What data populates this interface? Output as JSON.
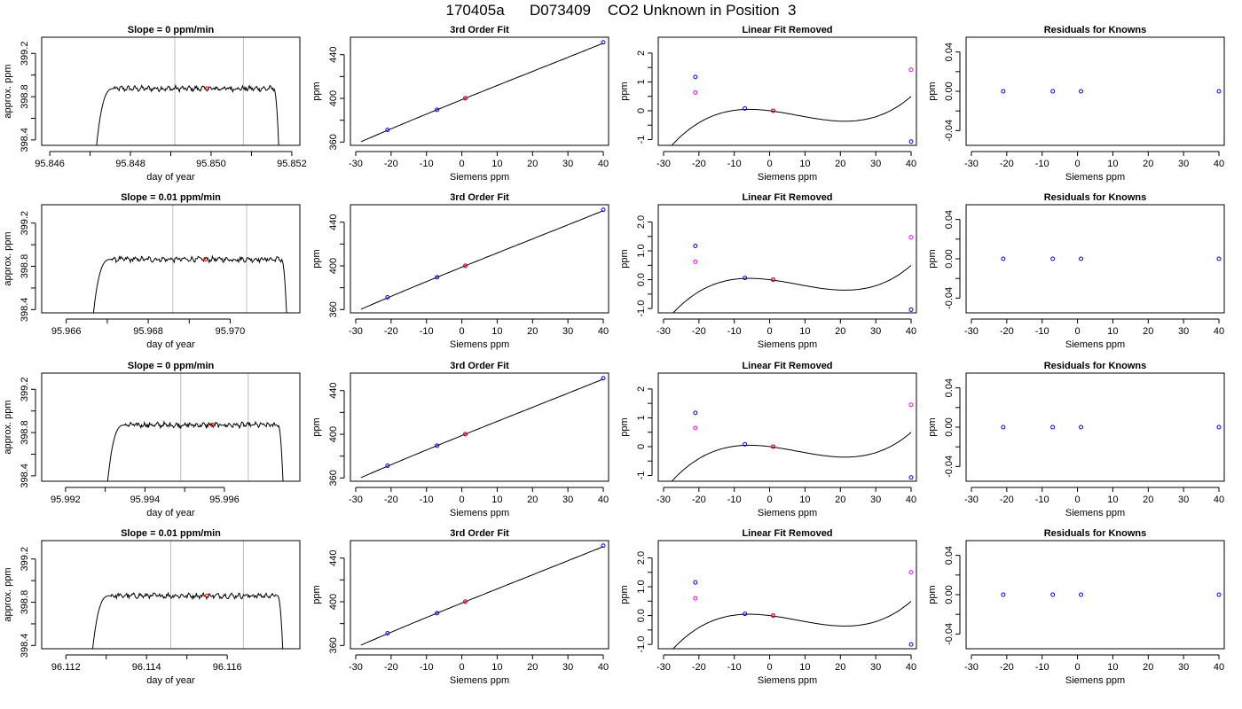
{
  "page_title": "170405a      D073409    CO2 Unknown in Position  3",
  "colors": {
    "line": "#000000",
    "known_points": "#0000ff",
    "unknown_point": "#ff0000",
    "raw_points": "#ff00ff",
    "time_markers": "#bebebe"
  },
  "chart_data": [
    {
      "type": "line",
      "row": 1,
      "title": "Slope =  0  ppm/min",
      "xlabel": "day of year",
      "ylabel": "approx. ppm",
      "xlim": [
        95.8458,
        95.8522
      ],
      "ylim": [
        398.35,
        399.35
      ],
      "xticks": [
        95.846,
        95.848,
        95.85,
        95.852
      ],
      "xticklabels": [
        "95.846",
        "95.848",
        "95.850",
        "95.852"
      ],
      "yticks": [
        398.4,
        398.8,
        399.2
      ],
      "yticklabels": [
        "398.4",
        "398.8",
        "399.2"
      ],
      "t0": 95.8471,
      "t1": 95.8517,
      "rise": 0.0005,
      "fall": 0.00015,
      "level": 398.875,
      "vlines": [
        95.8491,
        95.8508
      ],
      "marker": {
        "x": 95.8499,
        "y": 398.875
      }
    },
    {
      "type": "scatter",
      "row": 1,
      "title": "3rd Order Fit",
      "xlabel": "Siemens ppm",
      "ylabel": "ppm",
      "xlim": [
        -31.5,
        41.5
      ],
      "ylim": [
        357,
        456
      ],
      "xticks": [
        -30,
        -20,
        -10,
        0,
        10,
        20,
        30,
        40
      ],
      "xticklabels": [
        "-30",
        "-20",
        "-10",
        "0",
        "10",
        "20",
        "30",
        "40"
      ],
      "yticks": [
        360,
        400,
        440
      ],
      "yticklabels": [
        "360",
        "400",
        "440"
      ],
      "curve": {
        "x": [
          -28.5,
          40
        ],
        "a": 398.8,
        "b": 1.308,
        "c": -0.001,
        "d": 1.57e-05
      },
      "points": [
        {
          "x": -21,
          "y": 371.2,
          "c": "known"
        },
        {
          "x": -7,
          "y": 389.6,
          "c": "known"
        },
        {
          "x": 1,
          "y": 400.1,
          "c": "known"
        },
        {
          "x": 40,
          "y": 451.3,
          "c": "known"
        },
        {
          "x": 1,
          "y": 400.1,
          "c": "unknown"
        }
      ]
    },
    {
      "type": "scatter",
      "row": 1,
      "title": "Linear Fit Removed",
      "xlabel": "Siemens ppm",
      "ylabel": "ppm",
      "xlim": [
        -31.5,
        41.5
      ],
      "ylim": [
        -1.2,
        2.55
      ],
      "xticks": [
        -30,
        -20,
        -10,
        0,
        10,
        20,
        30,
        40
      ],
      "xticklabels": [
        "-30",
        "-20",
        "-10",
        "0",
        "10",
        "20",
        "30",
        "40"
      ],
      "yticks": [
        -1,
        0,
        1,
        2
      ],
      "yticklabels": [
        "-1",
        "0",
        "1",
        "2"
      ],
      "curve": {
        "x": [
          -29,
          40
        ],
        "a": 0,
        "b": -0.0152,
        "c": -0.00097,
        "d": 4.15e-05
      },
      "points": [
        {
          "x": -21,
          "y": 0.63,
          "c": "raw"
        },
        {
          "x": 40,
          "y": 1.42,
          "c": "raw"
        },
        {
          "x": -21,
          "y": 1.17,
          "c": "known"
        },
        {
          "x": -7,
          "y": 0.08,
          "c": "known"
        },
        {
          "x": 1,
          "y": 0.0,
          "c": "known"
        },
        {
          "x": 40,
          "y": -1.07,
          "c": "known"
        },
        {
          "x": 1,
          "y": 0.0,
          "c": "unknown"
        }
      ]
    },
    {
      "type": "scatter",
      "row": 1,
      "title": "Residuals for Knowns",
      "xlabel": "Siemens ppm",
      "ylabel": "ppm",
      "xlim": [
        -31.5,
        41.5
      ],
      "ylim": [
        -0.055,
        0.055
      ],
      "xticks": [
        -30,
        -20,
        -10,
        0,
        10,
        20,
        30,
        40
      ],
      "xticklabels": [
        "-30",
        "-20",
        "-10",
        "0",
        "10",
        "20",
        "30",
        "40"
      ],
      "yticks": [
        -0.04,
        0,
        0.04
      ],
      "yticklabels": [
        "-0.04",
        "0.00",
        "0.04"
      ],
      "points": [
        {
          "x": -21,
          "y": 0,
          "c": "known"
        },
        {
          "x": -7,
          "y": 0,
          "c": "known"
        },
        {
          "x": 1,
          "y": 0,
          "c": "known"
        },
        {
          "x": 40,
          "y": 0,
          "c": "known"
        }
      ]
    },
    {
      "type": "line",
      "row": 2,
      "title": "Slope =  0.01  ppm/min",
      "xlabel": "day of year",
      "ylabel": "approx. ppm",
      "xlim": [
        95.9654,
        95.9717
      ],
      "ylim": [
        398.37,
        399.37
      ],
      "xticks": [
        95.966,
        95.968,
        95.97
      ],
      "xticklabels": [
        "95.966",
        "95.968",
        "95.970"
      ],
      "yticks": [
        398.4,
        398.8,
        399.2
      ],
      "yticklabels": [
        "398.4",
        "398.8",
        "399.2"
      ],
      "t0": 95.9666,
      "t1": 95.9714,
      "rise": 0.0005,
      "fall": 0.00015,
      "level": 398.865,
      "vlines": [
        95.9686,
        95.9704
      ],
      "marker": {
        "x": 95.9694,
        "y": 398.865
      }
    },
    {
      "type": "scatter",
      "row": 2,
      "title": "3rd Order Fit",
      "xlabel": "Siemens ppm",
      "ylabel": "ppm",
      "xlim": [
        -31.5,
        41.5
      ],
      "ylim": [
        357,
        456
      ],
      "xticks": [
        -30,
        -20,
        -10,
        0,
        10,
        20,
        30,
        40
      ],
      "xticklabels": [
        "-30",
        "-20",
        "-10",
        "0",
        "10",
        "20",
        "30",
        "40"
      ],
      "yticks": [
        360,
        400,
        440
      ],
      "yticklabels": [
        "360",
        "400",
        "440"
      ],
      "curve": {
        "x": [
          -28.5,
          40
        ],
        "a": 398.8,
        "b": 1.308,
        "c": -0.001,
        "d": 1.57e-05
      },
      "points": [
        {
          "x": -21,
          "y": 371.2,
          "c": "known"
        },
        {
          "x": -7,
          "y": 389.6,
          "c": "known"
        },
        {
          "x": 1,
          "y": 400.1,
          "c": "known"
        },
        {
          "x": 40,
          "y": 451.3,
          "c": "known"
        },
        {
          "x": 1,
          "y": 400.1,
          "c": "unknown"
        }
      ]
    },
    {
      "type": "scatter",
      "row": 2,
      "title": "Linear Fit Removed",
      "xlabel": "Siemens ppm",
      "ylabel": "ppm",
      "xlim": [
        -31.5,
        41.5
      ],
      "ylim": [
        -1.15,
        2.6
      ],
      "xticks": [
        -30,
        -20,
        -10,
        0,
        10,
        20,
        30,
        40
      ],
      "xticklabels": [
        "-30",
        "-20",
        "-10",
        "0",
        "10",
        "20",
        "30",
        "40"
      ],
      "yticks": [
        -1,
        0,
        1,
        2
      ],
      "yticklabels": [
        "-1.0",
        "0.0",
        "1.0",
        "2.0"
      ],
      "curve": {
        "x": [
          -29,
          40
        ],
        "a": 0,
        "b": -0.0152,
        "c": -0.00097,
        "d": 4.15e-05
      },
      "points": [
        {
          "x": -21,
          "y": 0.62,
          "c": "raw"
        },
        {
          "x": 40,
          "y": 1.47,
          "c": "raw"
        },
        {
          "x": -21,
          "y": 1.17,
          "c": "known"
        },
        {
          "x": -7,
          "y": 0.06,
          "c": "known"
        },
        {
          "x": 1,
          "y": 0.0,
          "c": "known"
        },
        {
          "x": 40,
          "y": -1.04,
          "c": "known"
        },
        {
          "x": 1,
          "y": 0.0,
          "c": "unknown"
        }
      ]
    },
    {
      "type": "scatter",
      "row": 2,
      "title": "Residuals for Knowns",
      "xlabel": "Siemens ppm",
      "ylabel": "ppm",
      "xlim": [
        -31.5,
        41.5
      ],
      "ylim": [
        -0.055,
        0.055
      ],
      "xticks": [
        -30,
        -20,
        -10,
        0,
        10,
        20,
        30,
        40
      ],
      "xticklabels": [
        "-30",
        "-20",
        "-10",
        "0",
        "10",
        "20",
        "30",
        "40"
      ],
      "yticks": [
        -0.04,
        0,
        0.04
      ],
      "yticklabels": [
        "-0.04",
        "0.00",
        "0.04"
      ],
      "points": [
        {
          "x": -21,
          "y": 0,
          "c": "known"
        },
        {
          "x": -7,
          "y": 0,
          "c": "known"
        },
        {
          "x": 1,
          "y": 0,
          "c": "known"
        },
        {
          "x": 40,
          "y": 0,
          "c": "known"
        }
      ]
    },
    {
      "type": "line",
      "row": 3,
      "title": "Slope =  0  ppm/min",
      "xlabel": "day of year",
      "ylabel": "approx. ppm",
      "xlim": [
        95.9914,
        95.9979
      ],
      "ylim": [
        398.35,
        399.35
      ],
      "xticks": [
        95.992,
        95.994,
        95.996
      ],
      "xticklabels": [
        "95.992",
        "95.994",
        "95.996"
      ],
      "yticks": [
        398.4,
        398.8,
        399.2
      ],
      "yticklabels": [
        "398.4",
        "398.8",
        "399.2"
      ],
      "t0": 95.993,
      "t1": 95.9975,
      "rise": 0.0005,
      "fall": 0.00015,
      "level": 398.87,
      "vlines": [
        95.9949,
        95.9966
      ],
      "marker": {
        "x": 95.9957,
        "y": 398.87
      }
    },
    {
      "type": "scatter",
      "row": 3,
      "title": "3rd Order Fit",
      "xlabel": "Siemens ppm",
      "ylabel": "ppm",
      "xlim": [
        -31.5,
        41.5
      ],
      "ylim": [
        357,
        456
      ],
      "xticks": [
        -30,
        -20,
        -10,
        0,
        10,
        20,
        30,
        40
      ],
      "xticklabels": [
        "-30",
        "-20",
        "-10",
        "0",
        "10",
        "20",
        "30",
        "40"
      ],
      "yticks": [
        360,
        400,
        440
      ],
      "yticklabels": [
        "360",
        "400",
        "440"
      ],
      "curve": {
        "x": [
          -28.5,
          40
        ],
        "a": 398.8,
        "b": 1.308,
        "c": -0.001,
        "d": 1.57e-05
      },
      "points": [
        {
          "x": -21,
          "y": 371.2,
          "c": "known"
        },
        {
          "x": -7,
          "y": 389.6,
          "c": "known"
        },
        {
          "x": 1,
          "y": 400.1,
          "c": "known"
        },
        {
          "x": 40,
          "y": 451.3,
          "c": "known"
        },
        {
          "x": 1,
          "y": 400.1,
          "c": "unknown"
        }
      ]
    },
    {
      "type": "scatter",
      "row": 3,
      "title": "Linear Fit Removed",
      "xlabel": "Siemens ppm",
      "ylabel": "ppm",
      "xlim": [
        -31.5,
        41.5
      ],
      "ylim": [
        -1.2,
        2.55
      ],
      "xticks": [
        -30,
        -20,
        -10,
        0,
        10,
        20,
        30,
        40
      ],
      "xticklabels": [
        "-30",
        "-20",
        "-10",
        "0",
        "10",
        "20",
        "30",
        "40"
      ],
      "yticks": [
        -1,
        0,
        1,
        2
      ],
      "yticklabels": [
        "-1",
        "0",
        "1",
        "2"
      ],
      "curve": {
        "x": [
          -29,
          40
        ],
        "a": 0,
        "b": -0.0152,
        "c": -0.00097,
        "d": 4.15e-05
      },
      "points": [
        {
          "x": -21,
          "y": 0.65,
          "c": "raw"
        },
        {
          "x": 40,
          "y": 1.45,
          "c": "raw"
        },
        {
          "x": -21,
          "y": 1.17,
          "c": "known"
        },
        {
          "x": -7,
          "y": 0.08,
          "c": "known"
        },
        {
          "x": 1,
          "y": 0.0,
          "c": "known"
        },
        {
          "x": 40,
          "y": -1.07,
          "c": "known"
        },
        {
          "x": 1,
          "y": 0.0,
          "c": "unknown"
        }
      ]
    },
    {
      "type": "scatter",
      "row": 3,
      "title": "Residuals for Knowns",
      "xlabel": "Siemens ppm",
      "ylabel": "ppm",
      "xlim": [
        -31.5,
        41.5
      ],
      "ylim": [
        -0.055,
        0.055
      ],
      "xticks": [
        -30,
        -20,
        -10,
        0,
        10,
        20,
        30,
        40
      ],
      "xticklabels": [
        "-30",
        "-20",
        "-10",
        "0",
        "10",
        "20",
        "30",
        "40"
      ],
      "yticks": [
        -0.04,
        0,
        0.04
      ],
      "yticklabels": [
        "-0.04",
        "0.00",
        "0.04"
      ],
      "points": [
        {
          "x": -21,
          "y": 0,
          "c": "known"
        },
        {
          "x": -7,
          "y": 0,
          "c": "known"
        },
        {
          "x": 1,
          "y": 0,
          "c": "known"
        },
        {
          "x": 40,
          "y": 0,
          "c": "known"
        }
      ]
    },
    {
      "type": "line",
      "row": 4,
      "title": "Slope =  0.01  ppm/min",
      "xlabel": "day of year",
      "ylabel": "approx. ppm",
      "xlim": [
        96.1114,
        96.1178
      ],
      "ylim": [
        398.37,
        399.37
      ],
      "xticks": [
        96.112,
        96.114,
        96.116
      ],
      "xticklabels": [
        "96.112",
        "96.114",
        "96.116"
      ],
      "yticks": [
        398.4,
        398.8,
        399.2
      ],
      "yticklabels": [
        "398.4",
        "398.8",
        "399.2"
      ],
      "t0": 96.1126,
      "t1": 96.1174,
      "rise": 0.0005,
      "fall": 0.00015,
      "level": 398.86,
      "vlines": [
        96.1146,
        96.1164
      ],
      "marker": {
        "x": 96.1155,
        "y": 398.86
      }
    },
    {
      "type": "scatter",
      "row": 4,
      "title": "3rd Order Fit",
      "xlabel": "Siemens ppm",
      "ylabel": "ppm",
      "xlim": [
        -31.5,
        41.5
      ],
      "ylim": [
        357,
        456
      ],
      "xticks": [
        -30,
        -20,
        -10,
        0,
        10,
        20,
        30,
        40
      ],
      "xticklabels": [
        "-30",
        "-20",
        "-10",
        "0",
        "10",
        "20",
        "30",
        "40"
      ],
      "yticks": [
        360,
        400,
        440
      ],
      "yticklabels": [
        "360",
        "400",
        "440"
      ],
      "curve": {
        "x": [
          -28.5,
          40
        ],
        "a": 398.8,
        "b": 1.308,
        "c": -0.001,
        "d": 1.57e-05
      },
      "points": [
        {
          "x": -21,
          "y": 371.2,
          "c": "known"
        },
        {
          "x": -7,
          "y": 389.6,
          "c": "known"
        },
        {
          "x": 1,
          "y": 400.1,
          "c": "known"
        },
        {
          "x": 40,
          "y": 451.3,
          "c": "known"
        },
        {
          "x": 1,
          "y": 400.1,
          "c": "unknown"
        }
      ]
    },
    {
      "type": "scatter",
      "row": 4,
      "title": "Linear Fit Removed",
      "xlabel": "Siemens ppm",
      "ylabel": "ppm",
      "xlim": [
        -31.5,
        41.5
      ],
      "ylim": [
        -1.15,
        2.6
      ],
      "xticks": [
        -30,
        -20,
        -10,
        0,
        10,
        20,
        30,
        40
      ],
      "xticklabels": [
        "-30",
        "-20",
        "-10",
        "0",
        "10",
        "20",
        "30",
        "40"
      ],
      "yticks": [
        -1,
        0,
        1,
        2
      ],
      "yticklabels": [
        "-1.0",
        "0.0",
        "1.0",
        "2.0"
      ],
      "curve": {
        "x": [
          -29,
          40
        ],
        "a": 0,
        "b": -0.0152,
        "c": -0.00097,
        "d": 4.15e-05
      },
      "points": [
        {
          "x": -21,
          "y": 0.6,
          "c": "raw"
        },
        {
          "x": 40,
          "y": 1.5,
          "c": "raw"
        },
        {
          "x": -21,
          "y": 1.15,
          "c": "known"
        },
        {
          "x": -7,
          "y": 0.06,
          "c": "known"
        },
        {
          "x": 1,
          "y": 0.0,
          "c": "known"
        },
        {
          "x": 40,
          "y": -1.0,
          "c": "known"
        },
        {
          "x": 1,
          "y": 0.0,
          "c": "unknown"
        }
      ]
    },
    {
      "type": "scatter",
      "row": 4,
      "title": "Residuals for Knowns",
      "xlabel": "Siemens ppm",
      "ylabel": "ppm",
      "xlim": [
        -31.5,
        41.5
      ],
      "ylim": [
        -0.055,
        0.055
      ],
      "xticks": [
        -30,
        -20,
        -10,
        0,
        10,
        20,
        30,
        40
      ],
      "xticklabels": [
        "-30",
        "-20",
        "-10",
        "0",
        "10",
        "20",
        "30",
        "40"
      ],
      "yticks": [
        -0.04,
        0,
        0.04
      ],
      "yticklabels": [
        "-0.04",
        "0.00",
        "0.04"
      ],
      "points": [
        {
          "x": -21,
          "y": 0,
          "c": "known"
        },
        {
          "x": -7,
          "y": 0,
          "c": "known"
        },
        {
          "x": 1,
          "y": 0,
          "c": "known"
        },
        {
          "x": 40,
          "y": 0,
          "c": "known"
        }
      ]
    }
  ]
}
